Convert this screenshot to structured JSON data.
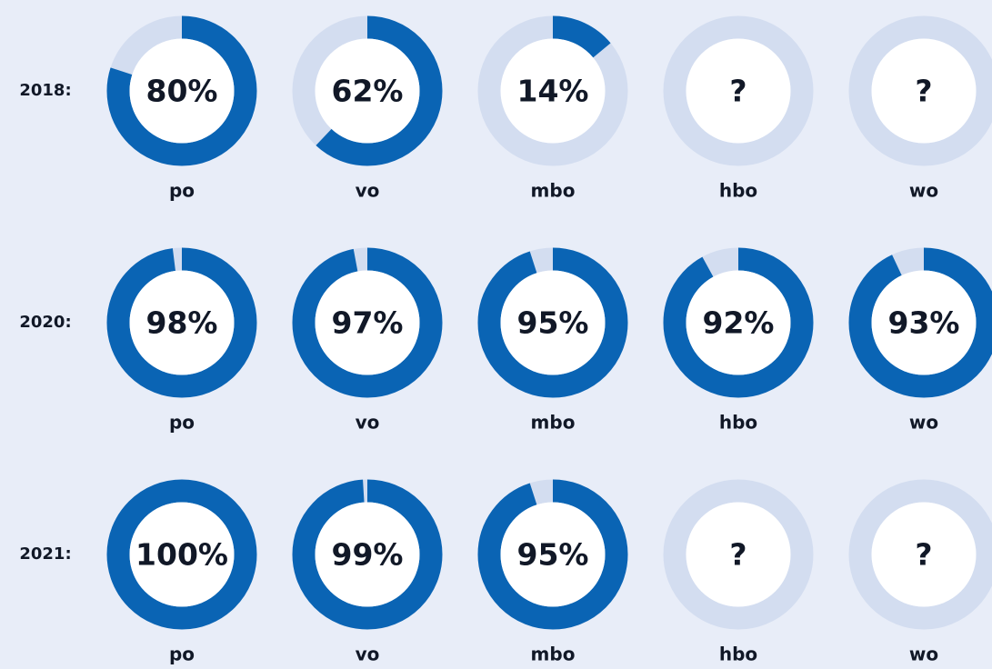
{
  "chart_data": {
    "type": "donut",
    "color": "#0a64b4",
    "track_color": "#d3ddf0",
    "max": 100,
    "rows": [
      {
        "label": "2018:",
        "categories": [
          "po",
          "vo",
          "mbo",
          "hbo",
          "wo"
        ],
        "values": [
          80,
          62,
          14,
          null,
          null
        ],
        "value_labels": [
          "80%",
          "62%",
          "14%",
          "?",
          "?"
        ]
      },
      {
        "label": "2020:",
        "categories": [
          "po",
          "vo",
          "mbo",
          "hbo",
          "wo"
        ],
        "values": [
          98,
          97,
          95,
          92,
          93
        ],
        "value_labels": [
          "98%",
          "97%",
          "95%",
          "92%",
          "93%"
        ]
      },
      {
        "label": "2021:",
        "categories": [
          "po",
          "vo",
          "mbo",
          "hbo",
          "wo"
        ],
        "values": [
          100,
          99,
          95,
          null,
          null
        ],
        "value_labels": [
          "100%",
          "99%",
          "95%",
          "?",
          "?"
        ]
      }
    ]
  }
}
